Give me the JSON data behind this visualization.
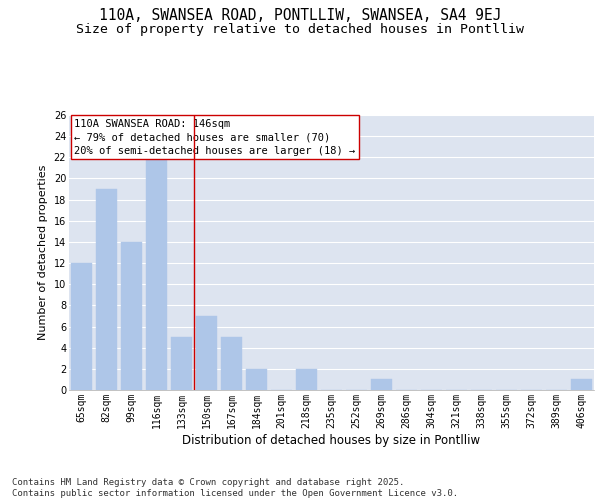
{
  "title1": "110A, SWANSEA ROAD, PONTLLIW, SWANSEA, SA4 9EJ",
  "title2": "Size of property relative to detached houses in Pontlliw",
  "xlabel": "Distribution of detached houses by size in Pontlliw",
  "ylabel": "Number of detached properties",
  "categories": [
    "65sqm",
    "82sqm",
    "99sqm",
    "116sqm",
    "133sqm",
    "150sqm",
    "167sqm",
    "184sqm",
    "201sqm",
    "218sqm",
    "235sqm",
    "252sqm",
    "269sqm",
    "286sqm",
    "304sqm",
    "321sqm",
    "338sqm",
    "355sqm",
    "372sqm",
    "389sqm",
    "406sqm"
  ],
  "values": [
    12,
    19,
    14,
    22,
    5,
    7,
    5,
    2,
    0,
    2,
    0,
    0,
    1,
    0,
    0,
    0,
    0,
    0,
    0,
    0,
    1
  ],
  "bar_color": "#aec6e8",
  "bar_edgecolor": "#aec6e8",
  "vline_x": 4.5,
  "vline_color": "#cc0000",
  "annotation_text": "110A SWANSEA ROAD: 146sqm\n← 79% of detached houses are smaller (70)\n20% of semi-detached houses are larger (18) →",
  "annotation_box_edgecolor": "#cc0000",
  "ylim": [
    0,
    26
  ],
  "yticks": [
    0,
    2,
    4,
    6,
    8,
    10,
    12,
    14,
    16,
    18,
    20,
    22,
    24,
    26
  ],
  "background_color": "#dde4f0",
  "grid_color": "#ffffff",
  "footer_text": "Contains HM Land Registry data © Crown copyright and database right 2025.\nContains public sector information licensed under the Open Government Licence v3.0.",
  "title1_fontsize": 10.5,
  "title2_fontsize": 9.5,
  "xlabel_fontsize": 8.5,
  "ylabel_fontsize": 8,
  "tick_fontsize": 7,
  "annotation_fontsize": 7.5,
  "footer_fontsize": 6.5
}
